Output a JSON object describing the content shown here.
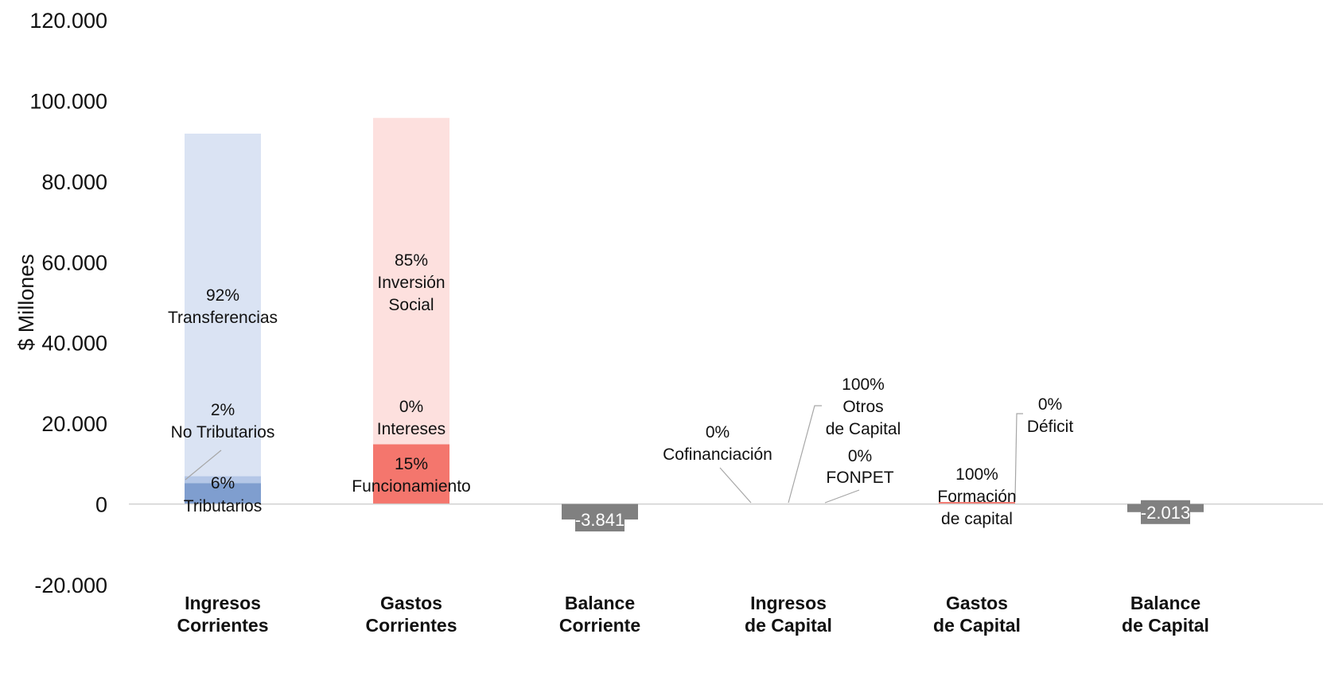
{
  "chart_data": {
    "type": "bar",
    "ylabel": "$ Millones",
    "ylim": [
      -20000,
      120000
    ],
    "yticks": [
      {
        "value": 120000,
        "label": "120.000"
      },
      {
        "value": 100000,
        "label": "100.000"
      },
      {
        "value": 80000,
        "label": "80.000"
      },
      {
        "value": 60000,
        "label": "60.000"
      },
      {
        "value": 40000,
        "label": "40.000"
      },
      {
        "value": 20000,
        "label": "20.000"
      },
      {
        "value": 0,
        "label": "0"
      },
      {
        "value": -20000,
        "label": "-20.000"
      }
    ],
    "categories": [
      {
        "line1": "Ingresos",
        "line2": "Corrientes"
      },
      {
        "line1": "Gastos",
        "line2": "Corrientes"
      },
      {
        "line1": "Balance",
        "line2": "Corriente"
      },
      {
        "line1": "Ingresos",
        "line2": "de Capital"
      },
      {
        "line1": "Gastos",
        "line2": "de Capital"
      },
      {
        "line1": "Balance",
        "line2": "de Capital"
      }
    ],
    "segments": [
      {
        "category": 0,
        "name": "Tributarios",
        "start": 0,
        "end": 5200,
        "color": "#7f9ecf"
      },
      {
        "category": 0,
        "name": "No Tributarios",
        "start": 5200,
        "end": 6900,
        "color": "#b4c7e7"
      },
      {
        "category": 0,
        "name": "Transferencias",
        "start": 6900,
        "end": 91800,
        "color": "#dae3f3"
      },
      {
        "category": 1,
        "name": "Funcionamiento",
        "start": 0,
        "end": 14800,
        "color": "#f4766d"
      },
      {
        "category": 1,
        "name": "Intereses",
        "start": 14800,
        "end": 14800,
        "color": "#f8a8a2"
      },
      {
        "category": 1,
        "name": "Inversión Social",
        "start": 14800,
        "end": 95700,
        "color": "#fde0de"
      },
      {
        "category": 4,
        "name": "Formación de capital",
        "start": 0,
        "end": 500,
        "color": "#f4766d"
      }
    ],
    "balances": [
      {
        "category": 2,
        "value": -3841,
        "label": "-3.841",
        "color": "#808080"
      },
      {
        "category": 5,
        "value": -2013,
        "label": "-2.013",
        "color": "#808080"
      }
    ],
    "annotations": [
      {
        "pct": "92%",
        "name": "Transferencias"
      },
      {
        "pct": "2%",
        "name": "No Tributarios"
      },
      {
        "pct": "6%",
        "name": "Tributarios"
      },
      {
        "pct": "85%",
        "name1": "Inversión",
        "name2": "Social"
      },
      {
        "pct": "0%",
        "name": "Intereses"
      },
      {
        "pct": "15%",
        "name": "Funcionamiento"
      },
      {
        "pct": "0%",
        "name": "Cofinanciación"
      },
      {
        "pct": "100%",
        "name1": "Otros",
        "name2": "de Capital"
      },
      {
        "pct": "0%",
        "name": "FONPET"
      },
      {
        "pct": "100%",
        "name1": "Formación",
        "name2": "de capital"
      },
      {
        "pct": "0%",
        "name": "Déficit"
      }
    ]
  }
}
